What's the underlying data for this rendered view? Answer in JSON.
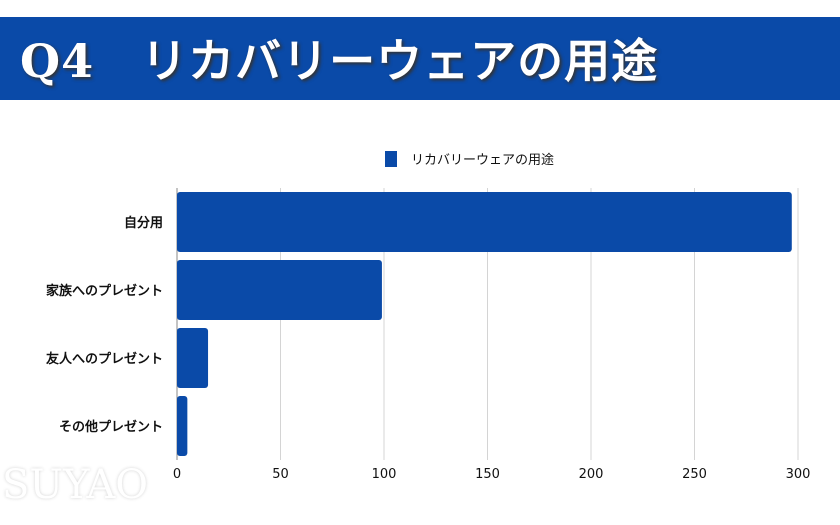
{
  "header": {
    "title": "Q4　リカバリーウェアの用途"
  },
  "watermark": "SUYAO",
  "chart_data": {
    "type": "bar",
    "orientation": "horizontal",
    "categories": [
      "自分用",
      "家族へのプレゼント",
      "友人へのプレゼント",
      "その他プレゼント"
    ],
    "series": [
      {
        "name": "リカバリーウェアの用途",
        "values": [
          297,
          99,
          15,
          5
        ],
        "color": "#0a4aa8"
      }
    ],
    "xlim": [
      0,
      300
    ],
    "xticks": [
      "0",
      "50",
      "100",
      "150",
      "200",
      "250",
      "300"
    ],
    "grid": true,
    "legend": "top"
  }
}
